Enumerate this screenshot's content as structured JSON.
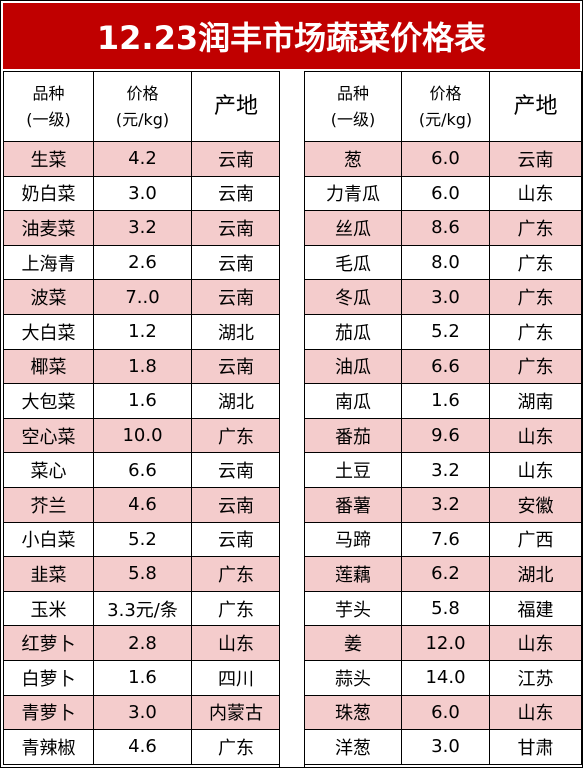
{
  "title": "12.23润丰市场蔬菜价格表",
  "header": {
    "name_line1": "品种",
    "name_line2": "(一级)",
    "price_line1": "价格",
    "price_line2": "(元/kg)",
    "origin": "产地"
  },
  "left": [
    {
      "name": "生菜",
      "price": "4.2",
      "origin": "云南"
    },
    {
      "name": "奶白菜",
      "price": "3.0",
      "origin": "云南"
    },
    {
      "name": "油麦菜",
      "price": "3.2",
      "origin": "云南"
    },
    {
      "name": "上海青",
      "price": "2.6",
      "origin": "云南"
    },
    {
      "name": "波菜",
      "price": "7..0",
      "origin": "云南"
    },
    {
      "name": "大白菜",
      "price": "1.2",
      "origin": "湖北"
    },
    {
      "name": "椰菜",
      "price": "1.8",
      "origin": "云南"
    },
    {
      "name": "大包菜",
      "price": "1.6",
      "origin": "湖北"
    },
    {
      "name": "空心菜",
      "price": "10.0",
      "origin": "广东"
    },
    {
      "name": "菜心",
      "price": "6.6",
      "origin": "云南"
    },
    {
      "name": "芥兰",
      "price": "4.6",
      "origin": "云南"
    },
    {
      "name": "小白菜",
      "price": "5.2",
      "origin": "云南"
    },
    {
      "name": "韭菜",
      "price": "5.8",
      "origin": "广东"
    },
    {
      "name": "玉米",
      "price": "3.3元/条",
      "origin": "广东"
    },
    {
      "name": "红萝卜",
      "price": "2.8",
      "origin": "山东"
    },
    {
      "name": "白萝卜",
      "price": "1.6",
      "origin": "四川"
    },
    {
      "name": "青萝卜",
      "price": "3.0",
      "origin": "内蒙古"
    },
    {
      "name": "青辣椒",
      "price": "4.6",
      "origin": "广东"
    }
  ],
  "right": [
    {
      "name": "葱",
      "price": "6.0",
      "origin": "云南"
    },
    {
      "name": "力青瓜",
      "price": "6.0",
      "origin": "山东"
    },
    {
      "name": "丝瓜",
      "price": "8.6",
      "origin": "广东"
    },
    {
      "name": "毛瓜",
      "price": "8.0",
      "origin": "广东"
    },
    {
      "name": "冬瓜",
      "price": "3.0",
      "origin": "广东"
    },
    {
      "name": "茄瓜",
      "price": "5.2",
      "origin": "广东"
    },
    {
      "name": "油瓜",
      "price": "6.6",
      "origin": "广东"
    },
    {
      "name": "南瓜",
      "price": "1.6",
      "origin": "湖南"
    },
    {
      "name": "番茄",
      "price": "9.6",
      "origin": "山东"
    },
    {
      "name": "土豆",
      "price": "3.2",
      "origin": "山东"
    },
    {
      "name": "番薯",
      "price": "3.2",
      "origin": "安徽"
    },
    {
      "name": "马蹄",
      "price": "7.6",
      "origin": "广西"
    },
    {
      "name": "莲藕",
      "price": "6.2",
      "origin": "湖北"
    },
    {
      "name": "芋头",
      "price": "5.8",
      "origin": "福建"
    },
    {
      "name": "姜",
      "price": "12.0",
      "origin": "山东"
    },
    {
      "name": "蒜头",
      "price": "14.0",
      "origin": "江苏"
    },
    {
      "name": "珠葱",
      "price": "6.0",
      "origin": "山东"
    },
    {
      "name": "洋葱",
      "price": "3.0",
      "origin": "甘肃"
    }
  ],
  "colors": {
    "title_bg": "#c00000",
    "stripe": "#f4cccc",
    "text": "#000000"
  }
}
